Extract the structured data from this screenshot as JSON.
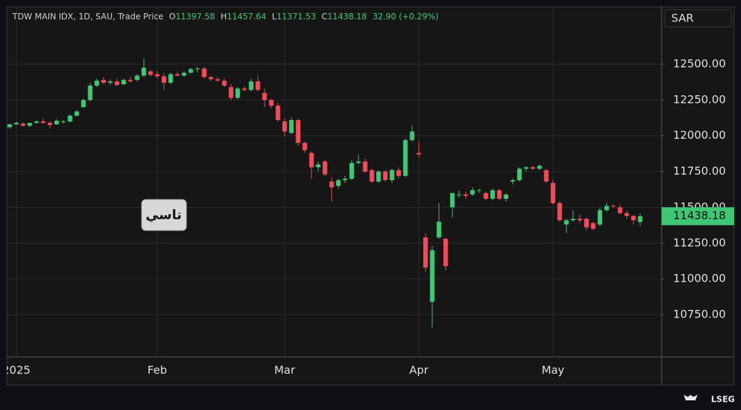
{
  "chart_data": {
    "type": "candlestick",
    "symbol": "TDW MAIN IDX, 1D, SAU, Trade Price",
    "legend_labels": [
      "O",
      "H",
      "L",
      "C"
    ],
    "change": "32.90 (+0.29%)",
    "currency": "SAR",
    "annotation": "تاسي",
    "brand": "LSEG",
    "up_color": "#3fc776",
    "down_color": "#f2495c",
    "grid": true,
    "categories": [
      null,
      "2025",
      null,
      null,
      null,
      null,
      null,
      null,
      null,
      null,
      null,
      null,
      null,
      null,
      null,
      null,
      null,
      null,
      null,
      null,
      null,
      null,
      "Feb",
      null,
      null,
      null,
      null,
      null,
      null,
      null,
      null,
      null,
      null,
      null,
      null,
      null,
      null,
      null,
      null,
      null,
      null,
      "Mar",
      null,
      null,
      null,
      null,
      null,
      null,
      null,
      null,
      null,
      null,
      null,
      null,
      null,
      null,
      null,
      null,
      null,
      null,
      null,
      "Apr",
      null,
      null,
      null,
      null,
      null,
      null,
      null,
      null,
      null,
      null,
      null,
      null,
      null,
      null,
      null,
      null,
      null,
      null,
      null,
      "May",
      null,
      null,
      null,
      null,
      null,
      null,
      null,
      null,
      null,
      null,
      null,
      null,
      null
    ],
    "open": [
      12060,
      12080,
      12085,
      12070,
      12090,
      12100,
      12090,
      12080,
      12095,
      12100,
      12140,
      12200,
      12250,
      12350,
      12390,
      12370,
      12380,
      12360,
      12390,
      12390,
      12420,
      12450,
      12430,
      12415,
      12370,
      12430,
      12420,
      12440,
      12465,
      12470,
      12410,
      12395,
      12385,
      12340,
      12265,
      12330,
      12320,
      12380,
      12300,
      12250,
      12210,
      12100,
      12020,
      12110,
      11950,
      11880,
      11780,
      11820,
      11680,
      11650,
      11690,
      11700,
      11810,
      11820,
      11760,
      11680,
      11750,
      11690,
      11760,
      11720,
      11970,
      11880,
      11290,
      10840,
      11290,
      11280,
      11500,
      11590,
      11590,
      11590,
      11620,
      11600,
      11560,
      11620,
      11560,
      11680,
      11690,
      11770,
      11780,
      11770,
      11760,
      11670,
      11530,
      11380,
      11410,
      11420,
      11420,
      11390,
      11380,
      11480,
      11510,
      11500,
      11460,
      11440,
      11397.58
    ],
    "high": [
      12085,
      12100,
      12095,
      12090,
      12110,
      12120,
      12100,
      12115,
      12110,
      12150,
      12180,
      12260,
      12370,
      12400,
      12410,
      12395,
      12400,
      12400,
      12410,
      12430,
      12540,
      12460,
      12450,
      12440,
      12440,
      12445,
      12450,
      12475,
      12480,
      12480,
      12420,
      12410,
      12400,
      12360,
      12340,
      12345,
      12400,
      12420,
      12330,
      12260,
      12230,
      12120,
      12130,
      12120,
      11960,
      11890,
      11820,
      11830,
      11710,
      11700,
      11720,
      11830,
      11870,
      11840,
      11770,
      11760,
      11760,
      11770,
      11780,
      11980,
      12070,
      11960,
      11320,
      11230,
      11530,
      11290,
      11600,
      11620,
      11610,
      11640,
      11630,
      11610,
      11630,
      11630,
      11600,
      11700,
      11780,
      11790,
      11790,
      11800,
      11770,
      11690,
      11540,
      11420,
      11480,
      11450,
      11430,
      11400,
      11500,
      11530,
      11520,
      11520,
      11480,
      11450,
      11457.64
    ],
    "low": [
      12050,
      12075,
      12065,
      12060,
      12085,
      12085,
      12050,
      12075,
      12085,
      12095,
      12135,
      12195,
      12240,
      12340,
      12360,
      12355,
      12345,
      12355,
      12370,
      12380,
      12410,
      12415,
      12400,
      12320,
      12360,
      12415,
      12410,
      12435,
      12445,
      12400,
      12380,
      12375,
      12340,
      12250,
      12255,
      12310,
      12310,
      12310,
      12200,
      12190,
      12100,
      12000,
      12010,
      11930,
      11880,
      11700,
      11750,
      11720,
      11540,
      11630,
      11670,
      11690,
      11800,
      11740,
      11670,
      11670,
      11680,
      11670,
      11700,
      11710,
      11960,
      11850,
      11050,
      10660,
      11280,
      11060,
      11430,
      11570,
      11560,
      11580,
      11600,
      11550,
      11550,
      11550,
      11540,
      11660,
      11680,
      11750,
      11760,
      11760,
      11670,
      11520,
      11400,
      11320,
      11400,
      11390,
      11340,
      11340,
      11370,
      11470,
      11500,
      11450,
      11420,
      11380,
      11371.53
    ],
    "close": [
      12080,
      12090,
      12070,
      12090,
      12100,
      12090,
      12075,
      12105,
      12100,
      12140,
      12170,
      12250,
      12350,
      12385,
      12370,
      12380,
      12355,
      12390,
      12380,
      12420,
      12475,
      12425,
      12415,
      12370,
      12430,
      12420,
      12440,
      12465,
      12470,
      12410,
      12395,
      12385,
      12350,
      12265,
      12330,
      12320,
      12380,
      12320,
      12250,
      12210,
      12110,
      12030,
      12110,
      11950,
      11900,
      11780,
      11800,
      11730,
      11640,
      11690,
      11700,
      11810,
      11820,
      11750,
      11680,
      11750,
      11690,
      11760,
      11720,
      11970,
      12030,
      11870,
      11080,
      11200,
      11400,
      11090,
      11600,
      11590,
      11580,
      11620,
      11620,
      11560,
      11620,
      11560,
      11590,
      11690,
      11770,
      11780,
      11770,
      11790,
      11680,
      11530,
      11410,
      11410,
      11420,
      11410,
      11360,
      11350,
      11480,
      11510,
      11505,
      11460,
      11440,
      11410,
      11438.18
    ],
    "ylim": [
      10456,
      12900
    ],
    "yticks": [
      {
        "value": 10750,
        "label": "10750.00"
      },
      {
        "value": 11000,
        "label": "11000.00"
      },
      {
        "value": 11250,
        "label": "11250.00"
      },
      {
        "value": 11500,
        "label": "11500.00"
      },
      {
        "value": 11750,
        "label": "11750.00"
      },
      {
        "value": 12000,
        "label": "12000.00"
      },
      {
        "value": 12250,
        "label": "12250.00"
      },
      {
        "value": 12500,
        "label": "12500.00"
      }
    ]
  }
}
